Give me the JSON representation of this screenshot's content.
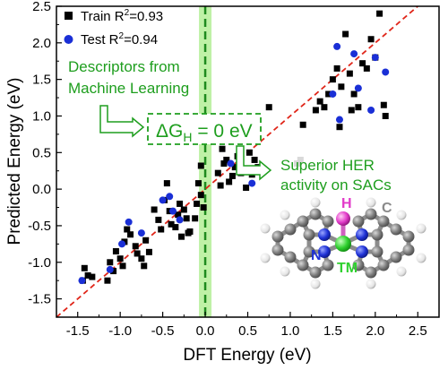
{
  "chart_data": {
    "type": "scatter",
    "xlabel": "DFT Energy (eV)",
    "ylabel": "Predicted Energy (eV)",
    "xlim": [
      -1.75,
      2.75
    ],
    "ylim": [
      -1.75,
      2.5
    ],
    "x_ticks": [
      "-1.5",
      "-1.0",
      "-0.5",
      "0.0",
      "0.5",
      "1.0",
      "1.5",
      "2.0",
      "2.5"
    ],
    "y_ticks": [
      "-1.5",
      "-1.0",
      "-0.5",
      "0.0",
      "0.5",
      "1.0",
      "1.5",
      "2.0",
      "2.5"
    ],
    "legend_placement": "top-left",
    "reference_line": {
      "type": "y = x",
      "color": "#e0261a",
      "style": "dashed"
    },
    "vertical_marker": {
      "x": 0.0,
      "color": "#1e8a1e",
      "style": "dashed",
      "band_color": "#b8ef9c"
    },
    "series": [
      {
        "name": "Train",
        "r2_label": "0.93",
        "marker": "square",
        "color": "#000000",
        "points": [
          [
            -1.42,
            -1.08
          ],
          [
            -1.38,
            -1.18
          ],
          [
            -1.44,
            -1.25
          ],
          [
            -1.33,
            -1.2
          ],
          [
            -1.12,
            -1.0
          ],
          [
            -1.08,
            -1.12
          ],
          [
            -1.15,
            -1.25
          ],
          [
            -1.05,
            -0.85
          ],
          [
            -1.0,
            -0.95
          ],
          [
            -0.97,
            -1.05
          ],
          [
            -0.95,
            -0.72
          ],
          [
            -0.92,
            -0.55
          ],
          [
            -0.88,
            -0.62
          ],
          [
            -0.82,
            -0.78
          ],
          [
            -0.8,
            -0.88
          ],
          [
            -0.75,
            -0.95
          ],
          [
            -0.72,
            -1.05
          ],
          [
            -0.7,
            -0.7
          ],
          [
            -0.66,
            -0.86
          ],
          [
            -0.6,
            -0.28
          ],
          [
            -0.55,
            -0.42
          ],
          [
            -0.52,
            -0.55
          ],
          [
            -0.48,
            -0.15
          ],
          [
            -0.45,
            0.08
          ],
          [
            -0.42,
            -0.3
          ],
          [
            -0.4,
            -0.48
          ],
          [
            -0.35,
            -0.52
          ],
          [
            -0.32,
            -0.35
          ],
          [
            -0.3,
            -0.2
          ],
          [
            -0.28,
            -0.65
          ],
          [
            -0.25,
            -0.28
          ],
          [
            -0.22,
            -0.4
          ],
          [
            -0.2,
            -0.6
          ],
          [
            -0.18,
            -0.58
          ],
          [
            -0.12,
            -0.4
          ],
          [
            -0.1,
            -0.2
          ],
          [
            -0.08,
            0.08
          ],
          [
            -0.05,
            0.32
          ],
          [
            -0.05,
            -0.08
          ],
          [
            -0.02,
            -0.25
          ],
          [
            0.15,
            0.22
          ],
          [
            0.18,
            0.05
          ],
          [
            0.2,
            0.55
          ],
          [
            0.22,
            0.35
          ],
          [
            0.25,
            0.4
          ],
          [
            0.28,
            0.1
          ],
          [
            0.32,
            0.18
          ],
          [
            0.35,
            0.3
          ],
          [
            0.38,
            0.45
          ],
          [
            0.42,
            0.22
          ],
          [
            0.45,
            0.28
          ],
          [
            0.48,
            0.02
          ],
          [
            0.52,
            0.5
          ],
          [
            0.55,
            0.2
          ],
          [
            0.58,
            0.4
          ],
          [
            0.62,
            0.3
          ],
          [
            0.75,
            1.12
          ],
          [
            1.08,
            0.35
          ],
          [
            1.12,
            0.4
          ],
          [
            1.15,
            0.88
          ],
          [
            1.3,
            1.08
          ],
          [
            1.35,
            1.2
          ],
          [
            1.4,
            1.12
          ],
          [
            1.45,
            1.3
          ],
          [
            1.5,
            1.5
          ],
          [
            1.55,
            1.65
          ],
          [
            1.6,
            1.4
          ],
          [
            1.65,
            2.12
          ],
          [
            1.7,
            1.58
          ],
          [
            1.75,
            1.3
          ],
          [
            1.8,
            1.12
          ],
          [
            1.85,
            1.72
          ],
          [
            1.9,
            1.65
          ],
          [
            1.95,
            2.05
          ],
          [
            2.0,
            1.8
          ],
          [
            2.05,
            2.4
          ],
          [
            2.1,
            1.15
          ],
          [
            2.12,
            1.0
          ],
          [
            1.58,
            0.85
          ],
          [
            1.72,
            1.08
          ]
        ]
      },
      {
        "name": "Test",
        "r2_label": "0.94",
        "marker": "circle",
        "color": "#1a2fd6",
        "points": [
          [
            -1.45,
            -1.25
          ],
          [
            -1.12,
            -1.1
          ],
          [
            -0.98,
            -0.75
          ],
          [
            -0.9,
            -0.45
          ],
          [
            -0.75,
            -0.6
          ],
          [
            -0.5,
            -0.15
          ],
          [
            -0.42,
            -0.1
          ],
          [
            -0.38,
            -0.3
          ],
          [
            -0.3,
            -0.42
          ],
          [
            0.3,
            0.35
          ],
          [
            0.55,
            0.08
          ],
          [
            1.5,
            1.3
          ],
          [
            1.55,
            1.95
          ],
          [
            1.58,
            0.95
          ],
          [
            1.8,
            1.38
          ],
          [
            2.0,
            1.8
          ],
          [
            2.12,
            1.6
          ],
          [
            1.95,
            1.08
          ],
          [
            1.75,
            1.85
          ]
        ]
      }
    ],
    "annotations": [
      "Descriptors from",
      "Machine Learning",
      "Superior HER",
      "activity on SACs"
    ],
    "delta_g": {
      "main": "ΔG",
      "sub": "H",
      "rest": " = 0 eV"
    },
    "molecule_labels": {
      "h": "H",
      "c": "C",
      "n": "N",
      "tm": "TM"
    },
    "legend": [
      {
        "name": "Train",
        "label": "Train R",
        "sup": "2",
        "rest": "=0.93"
      },
      {
        "name": "Test",
        "label": "Test R",
        "sup": "2",
        "rest": "=0.94"
      }
    ]
  },
  "colors": {
    "train": "#000000",
    "test": "#1a2fd6",
    "green": "#1e9e1e",
    "red": "#e0261a",
    "band": "#b8ef9c",
    "carbon": "#7a7a7a",
    "nitrogen": "#1f32d6",
    "metal": "#2fd12f",
    "hydrogen_top": "#e23ac9",
    "hydrogen": "#e8e8e8"
  }
}
